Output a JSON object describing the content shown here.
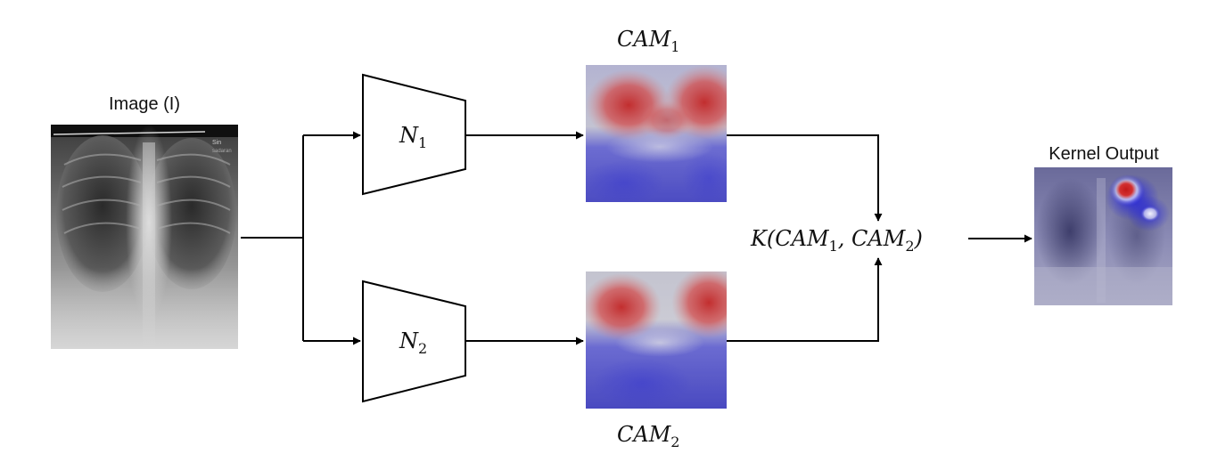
{
  "input": {
    "label": "Image (I)",
    "corner_text_1": "Sin",
    "corner_text_2": "sadaran"
  },
  "networks": [
    {
      "name": "N",
      "sub": "1"
    },
    {
      "name": "N",
      "sub": "2"
    }
  ],
  "cams": [
    {
      "name": "CAM",
      "sub": "1"
    },
    {
      "name": "CAM",
      "sub": "2"
    }
  ],
  "kernel": {
    "prefix": "K(",
    "arg1": "CAM",
    "arg1_sub": "1",
    "sep": ", ",
    "arg2": "CAM",
    "arg2_sub": "2",
    "suffix": ")"
  },
  "output": {
    "label": "Kernel Output"
  },
  "colors": {
    "heat_red": "#d42a2a",
    "heat_blue": "#3a3ae0",
    "xray_dark": "#1c1c1c",
    "xray_light": "#cfcfcf"
  }
}
